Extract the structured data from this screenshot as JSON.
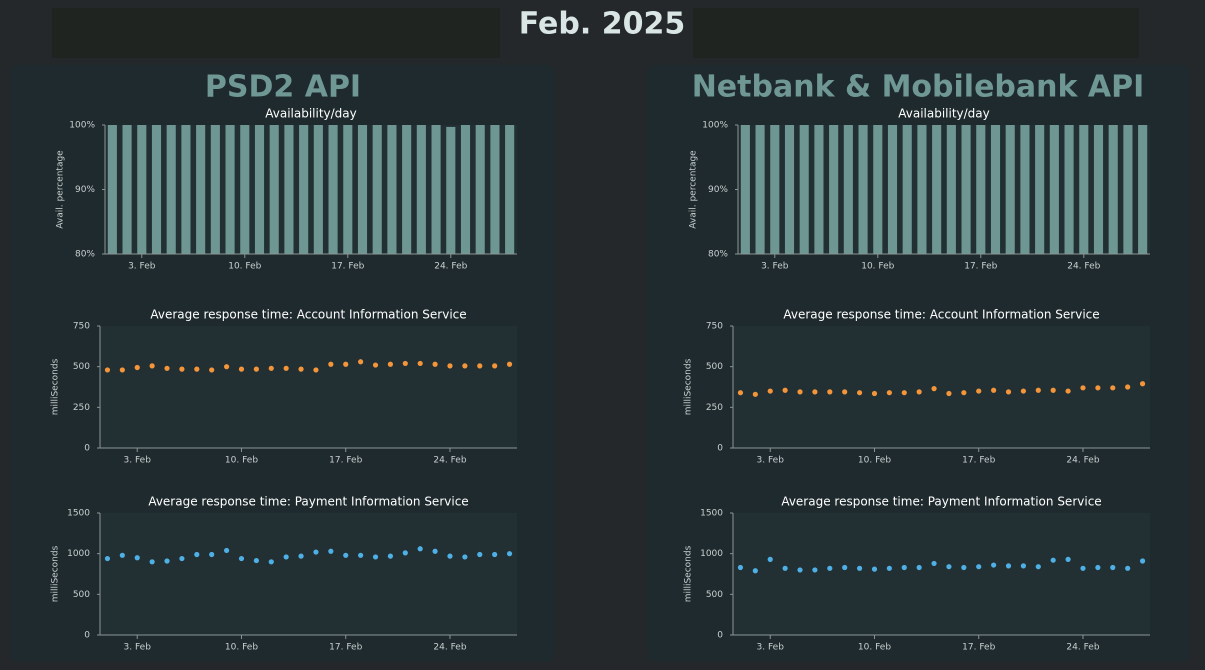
{
  "title": "Feb. 2025",
  "panels": [
    "PSD2 API",
    "Netbank & Mobilebank API"
  ],
  "chart_data": [
    {
      "type": "bar",
      "title": "Availability/day",
      "y_label": "Avail. percentage",
      "color": "#6e9692",
      "x": [
        1,
        2,
        3,
        4,
        5,
        6,
        7,
        8,
        9,
        10,
        11,
        12,
        13,
        14,
        15,
        16,
        17,
        18,
        19,
        20,
        21,
        22,
        23,
        24,
        25,
        26,
        27,
        28
      ],
      "values": [
        100,
        100,
        100,
        100,
        100,
        100,
        100,
        100,
        100,
        100,
        100,
        100,
        100,
        100,
        100,
        100,
        100,
        100,
        100,
        100,
        100,
        100,
        100,
        99.7,
        100,
        100,
        100,
        100
      ],
      "xlim": [
        0.5,
        28.5
      ],
      "xticks": [
        {
          "value": 3,
          "label": "3. Feb"
        },
        {
          "value": 10,
          "label": "10. Feb"
        },
        {
          "value": 17,
          "label": "17. Feb"
        },
        {
          "value": 24,
          "label": "24. Feb"
        }
      ],
      "ylim": [
        80,
        100
      ],
      "yticks": [
        {
          "value": 80,
          "label": "80%"
        },
        {
          "value": 90,
          "label": "90%"
        },
        {
          "value": 100,
          "label": "100%"
        }
      ]
    },
    {
      "type": "scatter",
      "title": "Average response time: Account Information Service",
      "y_label": "milliSeconds",
      "color": "#f5953a",
      "x": [
        1,
        2,
        3,
        4,
        5,
        6,
        7,
        8,
        9,
        10,
        11,
        12,
        13,
        14,
        15,
        16,
        17,
        18,
        19,
        20,
        21,
        22,
        23,
        24,
        25,
        26,
        27,
        28
      ],
      "values": [
        480,
        480,
        495,
        505,
        490,
        485,
        485,
        480,
        500,
        485,
        485,
        490,
        490,
        485,
        480,
        515,
        515,
        530,
        510,
        515,
        520,
        520,
        515,
        505,
        505,
        505,
        505,
        515
      ],
      "xlim": [
        0.5,
        28.5
      ],
      "xticks": [
        {
          "value": 3,
          "label": "3. Feb"
        },
        {
          "value": 10,
          "label": "10. Feb"
        },
        {
          "value": 17,
          "label": "17. Feb"
        },
        {
          "value": 24,
          "label": "24. Feb"
        }
      ],
      "ylim": [
        0,
        750
      ],
      "yticks": [
        0,
        250,
        500,
        750
      ]
    },
    {
      "type": "scatter",
      "title": "Average response time: Payment Information Service",
      "y_label": "milliSeconds",
      "color": "#4fb0e6",
      "x": [
        1,
        2,
        3,
        4,
        5,
        6,
        7,
        8,
        9,
        10,
        11,
        12,
        13,
        14,
        15,
        16,
        17,
        18,
        19,
        20,
        21,
        22,
        23,
        24,
        25,
        26,
        27,
        28
      ],
      "values": [
        940,
        980,
        950,
        900,
        910,
        940,
        990,
        990,
        1040,
        940,
        915,
        900,
        960,
        970,
        1020,
        1030,
        980,
        980,
        960,
        970,
        1010,
        1060,
        1030,
        970,
        960,
        990,
        990,
        1000
      ],
      "xlim": [
        0.5,
        28.5
      ],
      "xticks": [
        {
          "value": 3,
          "label": "3. Feb"
        },
        {
          "value": 10,
          "label": "10. Feb"
        },
        {
          "value": 17,
          "label": "17. Feb"
        },
        {
          "value": 24,
          "label": "24. Feb"
        }
      ],
      "ylim": [
        0,
        1500
      ],
      "yticks": [
        0,
        500,
        1000,
        1500
      ]
    },
    {
      "type": "bar",
      "title": "Availability/day",
      "y_label": "Avail. percentage",
      "color": "#6e9692",
      "x": [
        1,
        2,
        3,
        4,
        5,
        6,
        7,
        8,
        9,
        10,
        11,
        12,
        13,
        14,
        15,
        16,
        17,
        18,
        19,
        20,
        21,
        22,
        23,
        24,
        25,
        26,
        27,
        28
      ],
      "values": [
        100,
        100,
        100,
        100,
        100,
        100,
        100,
        100,
        100,
        100,
        100,
        100,
        100,
        100,
        100,
        100,
        100,
        100,
        100,
        100,
        100,
        100,
        100,
        100,
        100,
        100,
        100,
        100
      ],
      "xlim": [
        0.5,
        28.5
      ],
      "xticks": [
        {
          "value": 3,
          "label": "3. Feb"
        },
        {
          "value": 10,
          "label": "10. Feb"
        },
        {
          "value": 17,
          "label": "17. Feb"
        },
        {
          "value": 24,
          "label": "24. Feb"
        }
      ],
      "ylim": [
        80,
        100
      ],
      "yticks": [
        {
          "value": 80,
          "label": "80%"
        },
        {
          "value": 90,
          "label": "90%"
        },
        {
          "value": 100,
          "label": "100%"
        }
      ]
    },
    {
      "type": "scatter",
      "title": "Average response time: Account Information Service",
      "y_label": "milliSeconds",
      "color": "#f5953a",
      "x": [
        1,
        2,
        3,
        4,
        5,
        6,
        7,
        8,
        9,
        10,
        11,
        12,
        13,
        14,
        15,
        16,
        17,
        18,
        19,
        20,
        21,
        22,
        23,
        24,
        25,
        26,
        27,
        28
      ],
      "values": [
        340,
        330,
        350,
        355,
        345,
        345,
        345,
        345,
        340,
        335,
        340,
        340,
        345,
        365,
        335,
        340,
        350,
        355,
        345,
        350,
        355,
        355,
        350,
        370,
        370,
        370,
        375,
        395
      ],
      "xlim": [
        0.5,
        28.5
      ],
      "xticks": [
        {
          "value": 3,
          "label": "3. Feb"
        },
        {
          "value": 10,
          "label": "10. Feb"
        },
        {
          "value": 17,
          "label": "17. Feb"
        },
        {
          "value": 24,
          "label": "24. Feb"
        }
      ],
      "ylim": [
        0,
        750
      ],
      "yticks": [
        0,
        250,
        500,
        750
      ]
    },
    {
      "type": "scatter",
      "title": "Average response time: Payment Information Service",
      "y_label": "milliSeconds",
      "color": "#4fb0e6",
      "x": [
        1,
        2,
        3,
        4,
        5,
        6,
        7,
        8,
        9,
        10,
        11,
        12,
        13,
        14,
        15,
        16,
        17,
        18,
        19,
        20,
        21,
        22,
        23,
        24,
        25,
        26,
        27,
        28
      ],
      "values": [
        830,
        790,
        930,
        820,
        800,
        800,
        820,
        830,
        820,
        810,
        820,
        830,
        830,
        880,
        840,
        830,
        840,
        860,
        850,
        850,
        840,
        920,
        930,
        820,
        830,
        830,
        820,
        910
      ],
      "xlim": [
        0.5,
        28.5
      ],
      "xticks": [
        {
          "value": 3,
          "label": "3. Feb"
        },
        {
          "value": 10,
          "label": "10. Feb"
        },
        {
          "value": 17,
          "label": "17. Feb"
        },
        {
          "value": 24,
          "label": "24. Feb"
        }
      ],
      "ylim": [
        0,
        1500
      ],
      "yticks": [
        0,
        500,
        1000,
        1500
      ]
    }
  ]
}
